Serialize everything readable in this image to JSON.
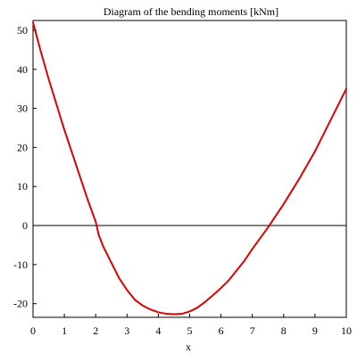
{
  "chart_data": {
    "type": "line",
    "title": "Diagram of the bending moments [kNm]",
    "xlabel": "x",
    "ylabel": "",
    "xlim": [
      0,
      10
    ],
    "ylim": [
      -23.5,
      52.5
    ],
    "xticks": [
      0,
      1,
      2,
      3,
      4,
      5,
      6,
      7,
      8,
      9,
      10
    ],
    "yticks": [
      -20,
      -10,
      0,
      10,
      20,
      30,
      40,
      50
    ],
    "grid": false,
    "legend": "none",
    "series": [
      {
        "color": "#e00000",
        "points": [
          [
            0,
            52
          ],
          [
            0.25,
            44.5
          ],
          [
            0.5,
            37.5
          ],
          [
            0.75,
            31
          ],
          [
            1,
            24.5
          ],
          [
            1.25,
            18.5
          ],
          [
            1.5,
            12.5
          ],
          [
            1.75,
            6.5
          ],
          [
            2,
            1
          ],
          [
            2.1,
            -2.5
          ],
          [
            2.25,
            -5.5
          ],
          [
            2.5,
            -9.5
          ],
          [
            2.75,
            -13.5
          ],
          [
            3,
            -16.5
          ],
          [
            3.25,
            -19
          ],
          [
            3.5,
            -20.5
          ],
          [
            3.75,
            -21.5
          ],
          [
            4,
            -22.2
          ],
          [
            4.25,
            -22.6
          ],
          [
            4.5,
            -22.7
          ],
          [
            4.75,
            -22.6
          ],
          [
            5,
            -22
          ],
          [
            5.25,
            -21
          ],
          [
            5.5,
            -19.5
          ],
          [
            5.75,
            -17.8
          ],
          [
            6,
            -16
          ],
          [
            6.25,
            -14
          ],
          [
            6.5,
            -11.5
          ],
          [
            6.75,
            -9
          ],
          [
            7,
            -6
          ],
          [
            7.5,
            -0.5
          ],
          [
            8,
            5.5
          ],
          [
            8.5,
            12
          ],
          [
            9,
            19
          ],
          [
            9.5,
            27
          ],
          [
            10,
            35
          ]
        ]
      }
    ]
  }
}
